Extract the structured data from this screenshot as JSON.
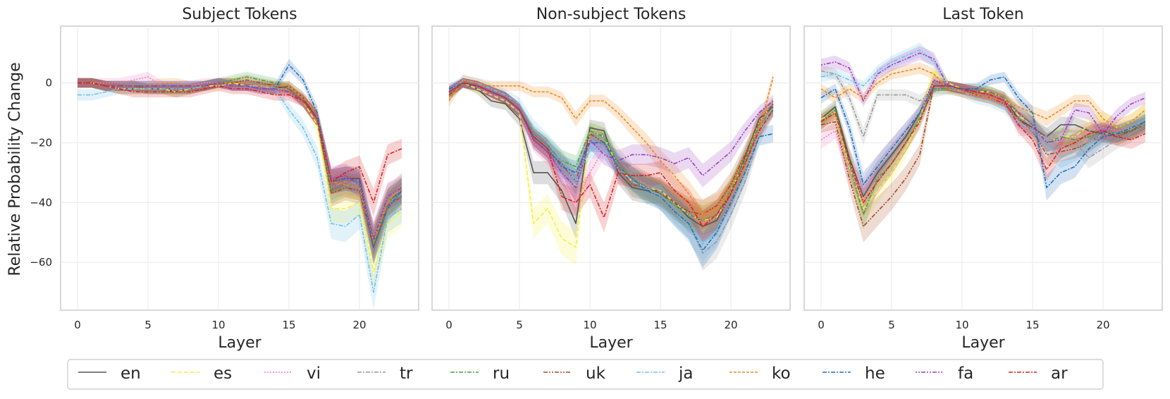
{
  "chart_data": {
    "type": "line",
    "ylabel": "Relative Probability Change",
    "xlabel": "Layer",
    "xlim": [
      -1.2,
      24.2
    ],
    "ylim": [
      -76,
      19
    ],
    "xticks": [
      0,
      5,
      10,
      15,
      20
    ],
    "yticks": [
      0,
      -20,
      -40,
      -60
    ],
    "grid": true,
    "legend_position": "bottom-center",
    "series_styles": [
      {
        "name": "en",
        "color": "#555555",
        "dash": ""
      },
      {
        "name": "es",
        "color": "#f5f040",
        "dash": "6,3"
      },
      {
        "name": "vi",
        "color": "#f07ac0",
        "dash": "2,2"
      },
      {
        "name": "tr",
        "color": "#9a9a9a",
        "dash": "6,2,2,2"
      },
      {
        "name": "ru",
        "color": "#3ea63e",
        "dash": "6,2,2,2"
      },
      {
        "name": "uk",
        "color": "#a84a1e",
        "dash": "6,2,2,2,2,2"
      },
      {
        "name": "ja",
        "color": "#70c0e8",
        "dash": "6,2,2,2"
      },
      {
        "name": "ko",
        "color": "#f08a20",
        "dash": "4,2"
      },
      {
        "name": "he",
        "color": "#1f6fc0",
        "dash": "6,2,2,2"
      },
      {
        "name": "fa",
        "color": "#9a3fbf",
        "dash": "2,2,2,2,6,2"
      },
      {
        "name": "ar",
        "color": "#dc2020",
        "dash": "6,2,2,2"
      }
    ],
    "panels": [
      {
        "title": "Subject Tokens",
        "series": [
          {
            "name": "en",
            "values": [
              0,
              0,
              -1,
              -2,
              -2,
              -2,
              -2,
              -3,
              -2,
              -1,
              0,
              0,
              -1,
              -1,
              -2,
              -1,
              -5,
              -12,
              -33,
              -32,
              -32,
              -53,
              -40,
              -36
            ]
          },
          {
            "name": "es",
            "values": [
              0,
              0,
              -1,
              -2,
              -2,
              -2,
              -2,
              -3,
              -2,
              -1,
              -1,
              0,
              -1,
              -1,
              -2,
              -2,
              -6,
              -14,
              -42,
              -42,
              -40,
              -63,
              -47,
              -43
            ]
          },
          {
            "name": "vi",
            "values": [
              0,
              0,
              0,
              0,
              1,
              2,
              -1,
              -1,
              -1,
              0,
              0,
              -1,
              -1,
              -1,
              -2,
              -2,
              -6,
              -12,
              -33,
              -32,
              -33,
              -52,
              -38,
              -36
            ]
          },
          {
            "name": "tr",
            "values": [
              0,
              0,
              -1,
              -1,
              -1,
              -2,
              -2,
              -2,
              -2,
              -1,
              0,
              -1,
              -1,
              -1,
              -2,
              -2,
              -6,
              -12,
              -35,
              -33,
              -34,
              -54,
              -40,
              -37
            ]
          },
          {
            "name": "ru",
            "values": [
              0,
              0,
              -1,
              -1,
              -1,
              -2,
              -2,
              -2,
              -2,
              -1,
              0,
              1,
              2,
              1,
              0,
              -2,
              -6,
              -12,
              -36,
              -34,
              -35,
              -54,
              -40,
              -36
            ]
          },
          {
            "name": "uk",
            "values": [
              0,
              0,
              -1,
              -1,
              -1,
              -2,
              -2,
              -2,
              -2,
              -1,
              0,
              0,
              1,
              0,
              -1,
              -2,
              -6,
              -12,
              -37,
              -35,
              -36,
              -55,
              -41,
              -38
            ]
          },
          {
            "name": "ja",
            "values": [
              -4,
              -4,
              -3,
              -2,
              -2,
              -2,
              -2,
              -2,
              -2,
              -1,
              0,
              -1,
              -1,
              -1,
              -2,
              -9,
              -15,
              -25,
              -47,
              -48,
              -44,
              -70,
              -45,
              -42
            ]
          },
          {
            "name": "ko",
            "values": [
              0,
              0,
              -1,
              -1,
              -1,
              -1,
              0,
              0,
              -1,
              -1,
              0,
              0,
              0,
              -1,
              -1,
              -1,
              -5,
              -10,
              -33,
              -34,
              -35,
              -53,
              -40,
              -34
            ]
          },
          {
            "name": "he",
            "values": [
              0,
              0,
              -1,
              -1,
              -1,
              -1,
              -1,
              -1,
              -1,
              -1,
              0,
              -1,
              -1,
              -2,
              -2,
              6,
              1,
              -10,
              -33,
              -32,
              -33,
              -55,
              -42,
              -36
            ]
          },
          {
            "name": "fa",
            "values": [
              0,
              0,
              -1,
              -1,
              -1,
              -1,
              -1,
              -1,
              -1,
              -1,
              0,
              -1,
              -1,
              -2,
              -2,
              -3,
              -6,
              -12,
              -32,
              -31,
              -34,
              -52,
              -38,
              -35
            ]
          },
          {
            "name": "ar",
            "values": [
              0,
              0,
              -1,
              -2,
              -3,
              -3,
              -3,
              -3,
              -3,
              -2,
              -1,
              -2,
              -2,
              -3,
              -4,
              -4,
              -6,
              -12,
              -33,
              -30,
              -28,
              -40,
              -24,
              -22
            ]
          }
        ]
      },
      {
        "title": "Non-subject Tokens",
        "series": [
          {
            "name": "en",
            "values": [
              -3,
              0,
              -2,
              -6,
              -7,
              -12,
              -30,
              -30,
              -36,
              -47,
              -15,
              -16,
              -30,
              -35,
              -36,
              -36,
              -40,
              -45,
              -48,
              -46,
              -37,
              -25,
              -12,
              -8
            ]
          },
          {
            "name": "es",
            "values": [
              -3,
              0,
              -2,
              -4,
              -6,
              -10,
              -47,
              -42,
              -52,
              -55,
              -16,
              -18,
              -28,
              -33,
              -35,
              -36,
              -40,
              -44,
              -46,
              -45,
              -36,
              -26,
              -13,
              -7
            ]
          },
          {
            "name": "vi",
            "values": [
              -3,
              0,
              -1,
              -4,
              -5,
              -10,
              -20,
              -24,
              -30,
              -40,
              -30,
              -22,
              -29,
              -32,
              -34,
              -36,
              -41,
              -44,
              -47,
              -45,
              -38,
              -26,
              -13,
              -9
            ]
          },
          {
            "name": "tr",
            "values": [
              -3,
              0,
              -1,
              -3,
              -5,
              -10,
              -18,
              -22,
              -27,
              -36,
              -20,
              -18,
              -25,
              -31,
              -34,
              -38,
              -42,
              -47,
              -57,
              -53,
              -44,
              -33,
              -18,
              -9
            ]
          },
          {
            "name": "ru",
            "values": [
              -4,
              0,
              -1,
              -3,
              -5,
              -9,
              -17,
              -21,
              -26,
              -28,
              -16,
              -18,
              -27,
              -32,
              -35,
              -37,
              -41,
              -44,
              -46,
              -44,
              -36,
              -26,
              -14,
              -9
            ]
          },
          {
            "name": "uk",
            "values": [
              -4,
              0,
              -1,
              -3,
              -5,
              -9,
              -19,
              -23,
              -27,
              -33,
              -17,
              -20,
              -28,
              -34,
              -35,
              -37,
              -40,
              -43,
              -44,
              -41,
              -34,
              -24,
              -13,
              -7
            ]
          },
          {
            "name": "ja",
            "values": [
              -3,
              1,
              0,
              -2,
              -4,
              -7,
              -15,
              -20,
              -26,
              -33,
              -22,
              -22,
              -28,
              -33,
              -35,
              -38,
              -43,
              -48,
              -54,
              -49,
              -40,
              -30,
              -16,
              -8
            ]
          },
          {
            "name": "ko",
            "values": [
              -6,
              1,
              0,
              -1,
              -1,
              -1,
              -3,
              -3,
              -5,
              -12,
              -6,
              -6,
              -10,
              -15,
              -20,
              -26,
              -31,
              -37,
              -44,
              -42,
              -37,
              -28,
              -16,
              2
            ]
          },
          {
            "name": "he",
            "values": [
              -2,
              0,
              -1,
              -3,
              -5,
              -9,
              -18,
              -22,
              -28,
              -30,
              -20,
              -20,
              -28,
              -32,
              -36,
              -38,
              -43,
              -47,
              -56,
              -50,
              -40,
              -30,
              -18,
              -17
            ]
          },
          {
            "name": "fa",
            "values": [
              -3,
              0,
              -1,
              -3,
              -5,
              -9,
              -19,
              -23,
              -30,
              -35,
              -19,
              -24,
              -26,
              -24,
              -24,
              -25,
              -27,
              -25,
              -31,
              -27,
              -23,
              -16,
              -10,
              -6
            ]
          },
          {
            "name": "ar",
            "values": [
              -3,
              0,
              -1,
              -3,
              -5,
              -9,
              -18,
              -22,
              -38,
              -40,
              -34,
              -45,
              -30,
              -31,
              -31,
              -30,
              -36,
              -40,
              -48,
              -44,
              -37,
              -27,
              -16,
              -9
            ]
          }
        ]
      },
      {
        "title": "Last Token",
        "series": [
          {
            "name": "en",
            "values": [
              -12,
              -8,
              -25,
              -38,
              -30,
              -24,
              -18,
              -10,
              1,
              -1,
              -2,
              -3,
              -3,
              -5,
              -12,
              -15,
              -18,
              -14,
              -14,
              -16,
              -17,
              -17,
              -16,
              -14
            ]
          },
          {
            "name": "es",
            "values": [
              -12,
              -10,
              -28,
              -42,
              -36,
              -30,
              -22,
              -12,
              4,
              0,
              -2,
              -3,
              -3,
              -5,
              -11,
              -14,
              -20,
              -18,
              -18,
              -14,
              -12,
              -15,
              -13,
              -9
            ]
          },
          {
            "name": "vi",
            "values": [
              -19,
              -16,
              -30,
              -36,
              -28,
              -22,
              -16,
              -10,
              1,
              -1,
              -2,
              -3,
              -4,
              -5,
              -15,
              -15,
              -20,
              -19,
              -18,
              -16,
              -15,
              -16,
              -15,
              -14
            ]
          },
          {
            "name": "tr",
            "values": [
              4,
              3,
              -5,
              -18,
              -4,
              -4,
              -4,
              -6,
              -3,
              -2,
              -3,
              -4,
              -5,
              -7,
              -12,
              -14,
              -18,
              -22,
              -20,
              -25,
              -22,
              -19,
              -17,
              -14
            ]
          },
          {
            "name": "ru",
            "values": [
              -13,
              -9,
              -27,
              -44,
              -32,
              -27,
              -20,
              -12,
              -2,
              -2,
              -2,
              -2,
              -3,
              -5,
              -10,
              -14,
              -20,
              -18,
              -19,
              -18,
              -16,
              -17,
              -16,
              -14
            ]
          },
          {
            "name": "uk",
            "values": [
              -14,
              -13,
              -32,
              -48,
              -43,
              -38,
              -32,
              -24,
              -1,
              -1,
              -2,
              -4,
              -5,
              -7,
              -12,
              -16,
              -24,
              -23,
              -22,
              -20,
              -17,
              -18,
              -16,
              -13
            ]
          },
          {
            "name": "ja",
            "values": [
              2,
              3,
              1,
              -1,
              4,
              7,
              9,
              11,
              7,
              -1,
              -3,
              -5,
              -6,
              -8,
              -13,
              -16,
              -21,
              -25,
              -23,
              -20,
              -17,
              -17,
              -15,
              -12
            ]
          },
          {
            "name": "ko",
            "values": [
              -2,
              -5,
              -2,
              -5,
              0,
              3,
              4,
              5,
              3,
              -2,
              -3,
              -4,
              -5,
              -6,
              -8,
              -10,
              -12,
              -9,
              -6,
              -6,
              -12,
              -15,
              -13,
              -9
            ]
          },
          {
            "name": "he",
            "values": [
              -5,
              -2,
              -15,
              -34,
              -28,
              -22,
              -16,
              -10,
              -1,
              -1,
              -2,
              -2,
              1,
              2,
              -5,
              -10,
              -35,
              -30,
              -28,
              -22,
              -18,
              -17,
              -15,
              -13
            ]
          },
          {
            "name": "fa",
            "values": [
              6,
              7,
              5,
              -6,
              3,
              6,
              8,
              10,
              8,
              -1,
              -2,
              -3,
              -4,
              -6,
              -10,
              -14,
              -20,
              -19,
              -9,
              -10,
              -17,
              -11,
              -7,
              -5
            ]
          },
          {
            "name": "ar",
            "values": [
              -13,
              -10,
              -26,
              -40,
              -33,
              -27,
              -20,
              -13,
              -1,
              -1,
              -2,
              -3,
              -4,
              -6,
              -14,
              -19,
              -29,
              -22,
              -20,
              -17,
              -16,
              -18,
              -19,
              -17
            ]
          }
        ]
      }
    ]
  }
}
